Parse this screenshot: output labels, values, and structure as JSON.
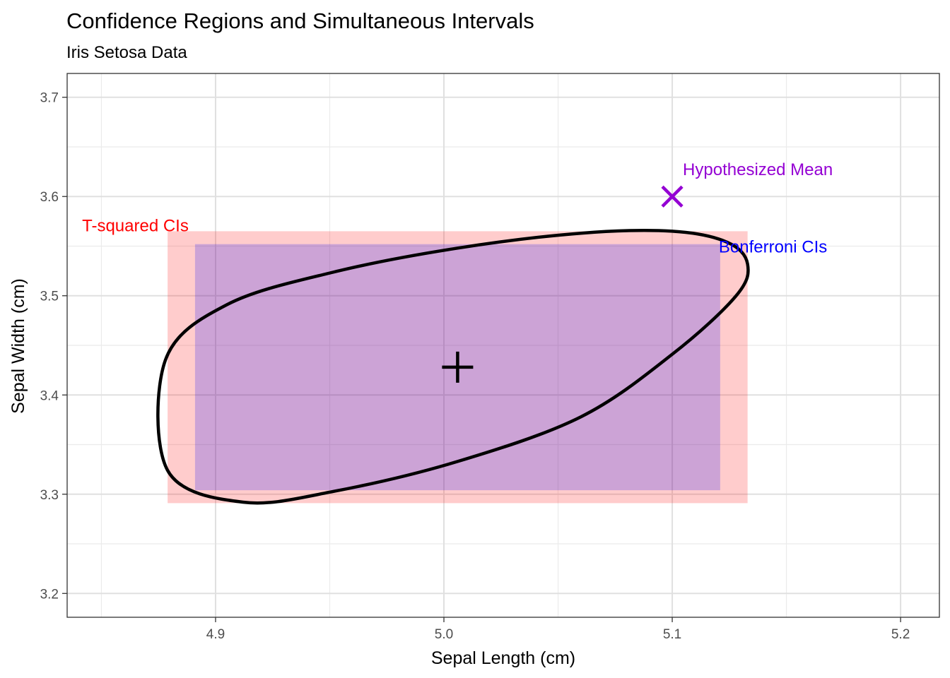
{
  "chart_data": {
    "type": "scatter",
    "title": "Confidence Regions and Simultaneous Intervals",
    "subtitle": "Iris Setosa Data",
    "xlabel": "Sepal Length (cm)",
    "ylabel": "Sepal Width (cm)",
    "xlim": [
      4.835,
      5.217
    ],
    "ylim": [
      3.176,
      3.724
    ],
    "x_ticks": [
      "4.9",
      "5.0",
      "5.1",
      "5.2"
    ],
    "y_ticks": [
      "3.2",
      "3.3",
      "3.4",
      "3.5",
      "3.6",
      "3.7"
    ],
    "grid": true,
    "sample_mean": {
      "x": 5.006,
      "y": 3.428
    },
    "hypothesized_mean": {
      "x": 5.1,
      "y": 3.6,
      "label": "Hypothesized Mean",
      "color": "#9400D3"
    },
    "t_squared_cis": {
      "label": "T-squared CIs",
      "color": "#FF0000",
      "x": [
        4.879,
        5.133
      ],
      "y": [
        3.291,
        3.565
      ]
    },
    "bonferroni_cis": {
      "label": "Bonferroni CIs",
      "color": "#0000FF",
      "x": [
        4.891,
        5.121
      ],
      "y": [
        3.304,
        3.552
      ]
    },
    "confidence_ellipse": {
      "center": [
        5.006,
        3.428
      ],
      "points": [
        [
          5.133,
          3.532
        ],
        [
          5.124,
          3.554
        ],
        [
          5.1,
          3.565
        ],
        [
          5.06,
          3.563
        ],
        [
          5.006,
          3.548
        ],
        [
          4.952,
          3.524
        ],
        [
          4.905,
          3.491
        ],
        [
          4.878,
          3.435
        ],
        [
          4.879,
          3.324
        ],
        [
          4.912,
          3.292
        ],
        [
          4.952,
          3.303
        ],
        [
          5.006,
          3.333
        ],
        [
          5.06,
          3.378
        ],
        [
          5.1,
          3.441
        ],
        [
          5.128,
          3.5
        ]
      ]
    }
  }
}
